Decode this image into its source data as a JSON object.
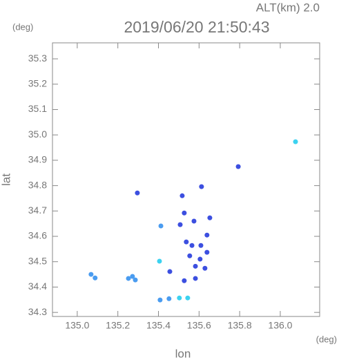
{
  "chart_data": {
    "type": "scatter",
    "title": "2019/06/20 21:50:43",
    "subtitle": "ALT(km) 2.0",
    "y_unit": "(deg)",
    "x_unit": "(deg)",
    "xlabel": "lon",
    "ylabel": "lat",
    "xlim": [
      134.878,
      136.194
    ],
    "ylim": [
      34.284,
      35.363
    ],
    "xticks": [
      {
        "value": 135.0,
        "label": "135.0"
      },
      135.2,
      135.4,
      135.6,
      135.8,
      {
        "value": 136.0,
        "label": "136.0"
      }
    ],
    "yticks": [
      34.3,
      34.4,
      34.5,
      34.6,
      34.7,
      34.8,
      34.9,
      {
        "value": 35.0,
        "label": "35.0"
      },
      35.1,
      35.2,
      35.3
    ],
    "series": [
      {
        "color": "#3c4fe0",
        "x": [
          135.793,
          135.296,
          135.456,
          135.554,
          135.605,
          135.565,
          135.582,
          135.629,
          135.537,
          135.639,
          135.653,
          135.575,
          135.507,
          135.527,
          135.582,
          135.527,
          135.609,
          135.639,
          135.517,
          135.612
        ],
        "y": [
          34.875,
          34.771,
          34.461,
          34.523,
          34.51,
          34.564,
          34.482,
          34.474,
          34.578,
          34.605,
          34.673,
          34.66,
          34.646,
          34.692,
          34.434,
          34.425,
          34.564,
          34.537,
          34.76,
          34.796
        ]
      },
      {
        "color": "#4a9cf0",
        "x": [
          135.412,
          135.068,
          135.088,
          135.252,
          135.286,
          135.272,
          135.408,
          135.452
        ],
        "y": [
          34.641,
          34.45,
          34.436,
          34.434,
          34.428,
          34.442,
          34.349,
          34.354
        ]
      },
      {
        "color": "#3cd2f0",
        "x": [
          136.075,
          135.405,
          135.503,
          135.544
        ],
        "y": [
          34.973,
          34.502,
          34.357,
          34.357
        ]
      }
    ]
  }
}
